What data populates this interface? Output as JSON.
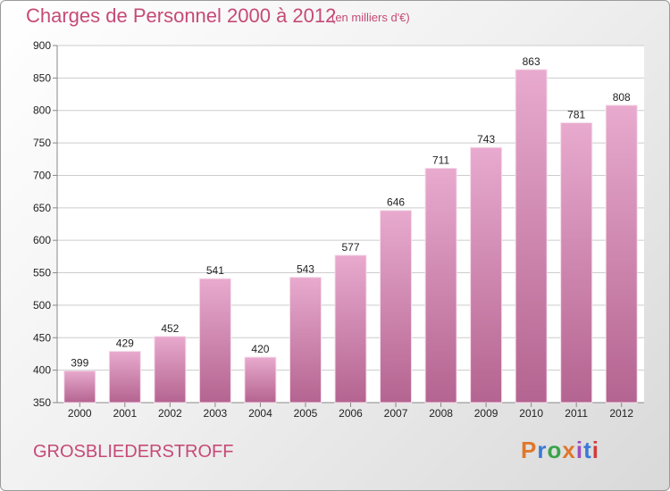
{
  "title": "Charges de Personnel 2000 à 2012",
  "subtitle": "(en milliers d'€)",
  "commune": "GROSBLIEDERSTROFF",
  "logo": {
    "letters": [
      "P",
      "r",
      "o",
      "x",
      "i",
      "t",
      "i"
    ],
    "colors": [
      "#e0772a",
      "#3a7ad6",
      "#3aa34a",
      "#e0772a",
      "#9c4bbd",
      "#3a7ad6",
      "#d23b3b"
    ]
  },
  "colors": {
    "accent": "#c64a76",
    "bar_top": "#e8aace",
    "bar_bottom": "#b46490",
    "grid": "#cccccc",
    "axis": "#888888"
  },
  "chart_data": {
    "type": "bar",
    "categories": [
      "2000",
      "2001",
      "2002",
      "2003",
      "2004",
      "2005",
      "2006",
      "2007",
      "2008",
      "2009",
      "2010",
      "2011",
      "2012"
    ],
    "values": [
      399,
      429,
      452,
      541,
      420,
      543,
      577,
      646,
      711,
      743,
      863,
      781,
      808
    ],
    "ylim": [
      350,
      900
    ],
    "yticks": [
      350,
      400,
      450,
      500,
      550,
      600,
      650,
      700,
      750,
      800,
      850,
      900
    ],
    "grid": true
  }
}
